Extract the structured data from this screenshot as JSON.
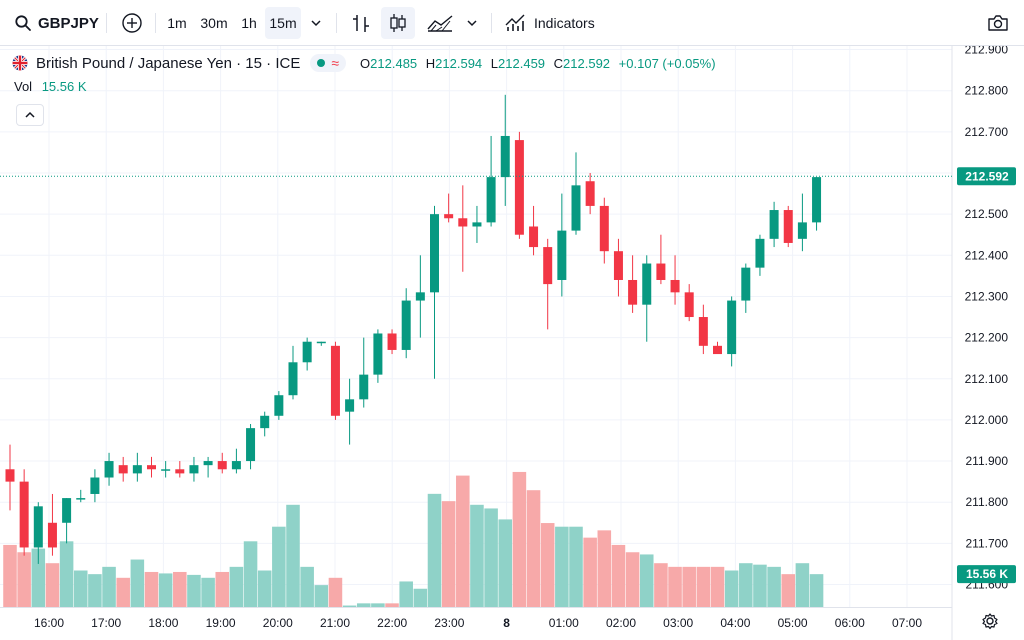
{
  "toolbar": {
    "symbol": "GBPJPY",
    "intervals": [
      "1m",
      "30m",
      "1h",
      "15m"
    ],
    "active_interval": "15m",
    "indicators_label": "Indicators",
    "icons": [
      "search-icon",
      "add-symbol-icon",
      "chevron-down-icon",
      "bar-style-icon",
      "candle-style-icon",
      "area-style-icon",
      "chevron-down-icon",
      "indicators-icon",
      "camera-icon"
    ]
  },
  "legend": {
    "title": "British Pound / Japanese Yen · 15 · ICE",
    "o_label": "O",
    "o_value": "212.485",
    "h_label": "H",
    "h_value": "212.594",
    "l_label": "L",
    "l_value": "212.459",
    "c_label": "C",
    "c_value": "212.592",
    "change": "+0.107 (+0.05%)",
    "vol_label": "Vol",
    "vol_value": "15.56 K"
  },
  "chart_data": {
    "type": "candlestick",
    "title": "British Pound / Japanese Yen · 15 · ICE",
    "x_labels": [
      "16:00",
      "17:00",
      "18:00",
      "19:00",
      "20:00",
      "21:00",
      "22:00",
      "23:00",
      "8",
      "01:00",
      "02:00",
      "03:00",
      "04:00",
      "05:00",
      "06:00",
      "07:00"
    ],
    "y_ticks": [
      "212.900",
      "212.800",
      "212.700",
      "212.600",
      "212.500",
      "212.400",
      "212.300",
      "212.200",
      "212.100",
      "212.000",
      "211.900",
      "211.800",
      "211.700",
      "211.600"
    ],
    "y_range": [
      211.55,
      212.95
    ],
    "last_price": "212.592",
    "last_volume": "15.56 K",
    "colors": {
      "up": "#089981",
      "down": "#f23645",
      "vol_up": "#8fd2c8",
      "vol_down": "#f7a9a9"
    },
    "candles": [
      {
        "o": 211.88,
        "h": 211.94,
        "l": 211.78,
        "c": 211.85,
        "v": 0.85
      },
      {
        "o": 211.85,
        "h": 211.88,
        "l": 211.67,
        "c": 211.69,
        "v": 0.75
      },
      {
        "o": 211.69,
        "h": 211.8,
        "l": 211.65,
        "c": 211.79,
        "v": 0.8
      },
      {
        "o": 211.75,
        "h": 211.82,
        "l": 211.67,
        "c": 211.69,
        "v": 0.6
      },
      {
        "o": 211.75,
        "h": 211.81,
        "l": 211.7,
        "c": 211.81,
        "v": 0.9
      },
      {
        "o": 211.81,
        "h": 211.83,
        "l": 211.8,
        "c": 211.81,
        "v": 0.5
      },
      {
        "o": 211.82,
        "h": 211.88,
        "l": 211.8,
        "c": 211.86,
        "v": 0.45
      },
      {
        "o": 211.86,
        "h": 211.92,
        "l": 211.84,
        "c": 211.9,
        "v": 0.55
      },
      {
        "o": 211.89,
        "h": 211.91,
        "l": 211.85,
        "c": 211.87,
        "v": 0.4
      },
      {
        "o": 211.87,
        "h": 211.92,
        "l": 211.85,
        "c": 211.89,
        "v": 0.65
      },
      {
        "o": 211.89,
        "h": 211.91,
        "l": 211.86,
        "c": 211.88,
        "v": 0.48
      },
      {
        "o": 211.88,
        "h": 211.9,
        "l": 211.86,
        "c": 211.88,
        "v": 0.46
      },
      {
        "o": 211.88,
        "h": 211.9,
        "l": 211.86,
        "c": 211.87,
        "v": 0.48
      },
      {
        "o": 211.87,
        "h": 211.91,
        "l": 211.85,
        "c": 211.89,
        "v": 0.44
      },
      {
        "o": 211.89,
        "h": 211.91,
        "l": 211.86,
        "c": 211.9,
        "v": 0.4
      },
      {
        "o": 211.9,
        "h": 211.92,
        "l": 211.87,
        "c": 211.88,
        "v": 0.48
      },
      {
        "o": 211.88,
        "h": 211.93,
        "l": 211.87,
        "c": 211.9,
        "v": 0.55
      },
      {
        "o": 211.9,
        "h": 211.99,
        "l": 211.88,
        "c": 211.98,
        "v": 0.9
      },
      {
        "o": 211.98,
        "h": 212.02,
        "l": 211.96,
        "c": 212.01,
        "v": 0.5
      },
      {
        "o": 212.01,
        "h": 212.07,
        "l": 212.0,
        "c": 212.06,
        "v": 1.1
      },
      {
        "o": 212.06,
        "h": 212.18,
        "l": 212.05,
        "c": 212.14,
        "v": 1.4
      },
      {
        "o": 212.14,
        "h": 212.2,
        "l": 212.12,
        "c": 212.19,
        "v": 0.55
      },
      {
        "o": 212.19,
        "h": 212.19,
        "l": 212.18,
        "c": 212.19,
        "v": 0.3
      },
      {
        "o": 212.18,
        "h": 212.19,
        "l": 212.0,
        "c": 212.01,
        "v": 0.4
      },
      {
        "o": 212.02,
        "h": 212.1,
        "l": 211.94,
        "c": 212.05,
        "v": 0.02
      },
      {
        "o": 212.05,
        "h": 212.2,
        "l": 212.03,
        "c": 212.11,
        "v": 0.05
      },
      {
        "o": 212.11,
        "h": 212.22,
        "l": 212.09,
        "c": 212.21,
        "v": 0.05
      },
      {
        "o": 212.21,
        "h": 212.22,
        "l": 212.16,
        "c": 212.17,
        "v": 0.05
      },
      {
        "o": 212.17,
        "h": 212.32,
        "l": 212.15,
        "c": 212.29,
        "v": 0.35
      },
      {
        "o": 212.29,
        "h": 212.4,
        "l": 212.2,
        "c": 212.31,
        "v": 0.25
      },
      {
        "o": 212.31,
        "h": 212.52,
        "l": 212.1,
        "c": 212.5,
        "v": 1.55
      },
      {
        "o": 212.5,
        "h": 212.55,
        "l": 212.48,
        "c": 212.49,
        "v": 1.45
      },
      {
        "o": 212.49,
        "h": 212.57,
        "l": 212.36,
        "c": 212.47,
        "v": 1.8
      },
      {
        "o": 212.47,
        "h": 212.52,
        "l": 212.43,
        "c": 212.48,
        "v": 1.4
      },
      {
        "o": 212.48,
        "h": 212.69,
        "l": 212.47,
        "c": 212.59,
        "v": 1.35
      },
      {
        "o": 212.59,
        "h": 212.79,
        "l": 212.52,
        "c": 212.69,
        "v": 1.2
      },
      {
        "o": 212.68,
        "h": 212.7,
        "l": 212.44,
        "c": 212.45,
        "v": 1.85
      },
      {
        "o": 212.47,
        "h": 212.52,
        "l": 212.4,
        "c": 212.42,
        "v": 1.6
      },
      {
        "o": 212.42,
        "h": 212.44,
        "l": 212.22,
        "c": 212.33,
        "v": 1.15
      },
      {
        "o": 212.34,
        "h": 212.55,
        "l": 212.3,
        "c": 212.46,
        "v": 1.1
      },
      {
        "o": 212.46,
        "h": 212.65,
        "l": 212.45,
        "c": 212.57,
        "v": 1.1
      },
      {
        "o": 212.58,
        "h": 212.6,
        "l": 212.5,
        "c": 212.52,
        "v": 0.95
      },
      {
        "o": 212.52,
        "h": 212.54,
        "l": 212.38,
        "c": 212.41,
        "v": 1.05
      },
      {
        "o": 212.41,
        "h": 212.44,
        "l": 212.3,
        "c": 212.34,
        "v": 0.85
      },
      {
        "o": 212.34,
        "h": 212.4,
        "l": 212.26,
        "c": 212.28,
        "v": 0.75
      },
      {
        "o": 212.28,
        "h": 212.4,
        "l": 212.19,
        "c": 212.38,
        "v": 0.72
      },
      {
        "o": 212.38,
        "h": 212.45,
        "l": 212.33,
        "c": 212.34,
        "v": 0.6
      },
      {
        "o": 212.34,
        "h": 212.4,
        "l": 212.28,
        "c": 212.31,
        "v": 0.55
      },
      {
        "o": 212.31,
        "h": 212.33,
        "l": 212.24,
        "c": 212.25,
        "v": 0.55
      },
      {
        "o": 212.25,
        "h": 212.28,
        "l": 212.16,
        "c": 212.18,
        "v": 0.55
      },
      {
        "o": 212.18,
        "h": 212.19,
        "l": 212.16,
        "c": 212.16,
        "v": 0.55
      },
      {
        "o": 212.16,
        "h": 212.3,
        "l": 212.13,
        "c": 212.29,
        "v": 0.5
      },
      {
        "o": 212.29,
        "h": 212.38,
        "l": 212.26,
        "c": 212.37,
        "v": 0.6
      },
      {
        "o": 212.37,
        "h": 212.45,
        "l": 212.35,
        "c": 212.44,
        "v": 0.58
      },
      {
        "o": 212.44,
        "h": 212.53,
        "l": 212.42,
        "c": 212.51,
        "v": 0.55
      },
      {
        "o": 212.51,
        "h": 212.52,
        "l": 212.42,
        "c": 212.43,
        "v": 0.45
      },
      {
        "o": 212.44,
        "h": 212.55,
        "l": 212.41,
        "c": 212.48,
        "v": 0.6
      },
      {
        "o": 212.48,
        "h": 212.59,
        "l": 212.46,
        "c": 212.59,
        "v": 0.45
      }
    ]
  }
}
